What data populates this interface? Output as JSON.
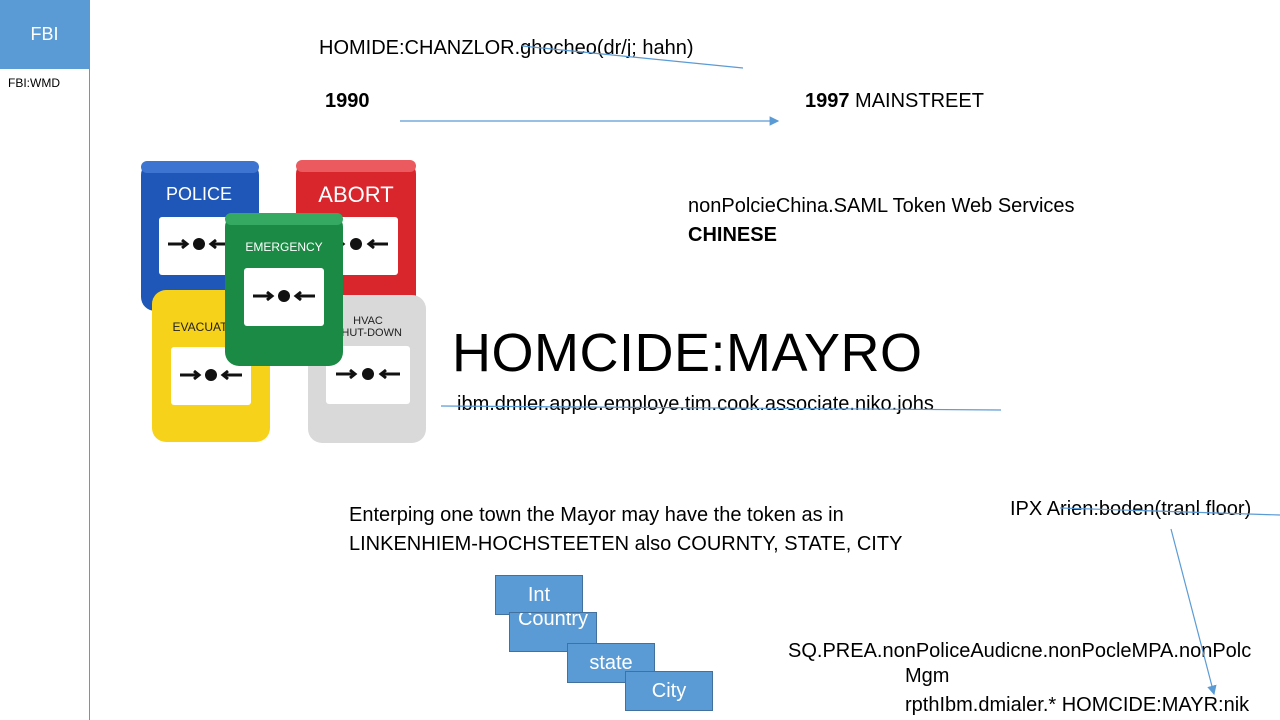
{
  "sidebar": {
    "title": "FBI",
    "subtitle": "FBI:WMD"
  },
  "header": {
    "line1": "HOMIDE:CHANZLOR.ghocheo(dr/j; hahn)"
  },
  "timeline": {
    "start": "1990",
    "end_year": "1997",
    "end_label": " MAINSTREET"
  },
  "token_note": {
    "line1": "nonPolcieChina.SAML Token Web Services",
    "line2": "CHINESE"
  },
  "main_title": "HOMCIDE:MAYRO",
  "main_subtitle": "ibm.dmler.apple.employe.tim.cook.associate.niko.johs",
  "description": {
    "line1": "Enterping one town the Mayor may have the token as in",
    "line2": "LINKENHIEM-HOCHSTEETEN also  COURNTY, STATE, CITY"
  },
  "hierarchy": [
    "Int",
    "Country",
    "state",
    "City"
  ],
  "ipx_label": "IPX Arien:boden(tranl floor)",
  "bottom_right": {
    "line1": "SQ.PREA.nonPoliceAudicne.nonPocleMPA.nonPolc",
    "line2": "Mgm",
    "line3": "rpthIbm.dmialer.* HOMCIDE:MAYR:nik"
  },
  "buttons": {
    "police": "POLICE",
    "abort": "ABORT",
    "emergency": "EMERGENCY",
    "evacuate": "EVACUAT",
    "hvac_line1": "HVAC",
    "hvac_line2": "SHUT-DOWN"
  },
  "colors": {
    "accent": "#5b9bd5",
    "police_blue": "#1f57b8",
    "abort_red": "#d8262c",
    "emergency_green": "#1a8a44",
    "evacuate_yellow": "#f7d21a",
    "hvac_gray": "#d9d9d9"
  }
}
